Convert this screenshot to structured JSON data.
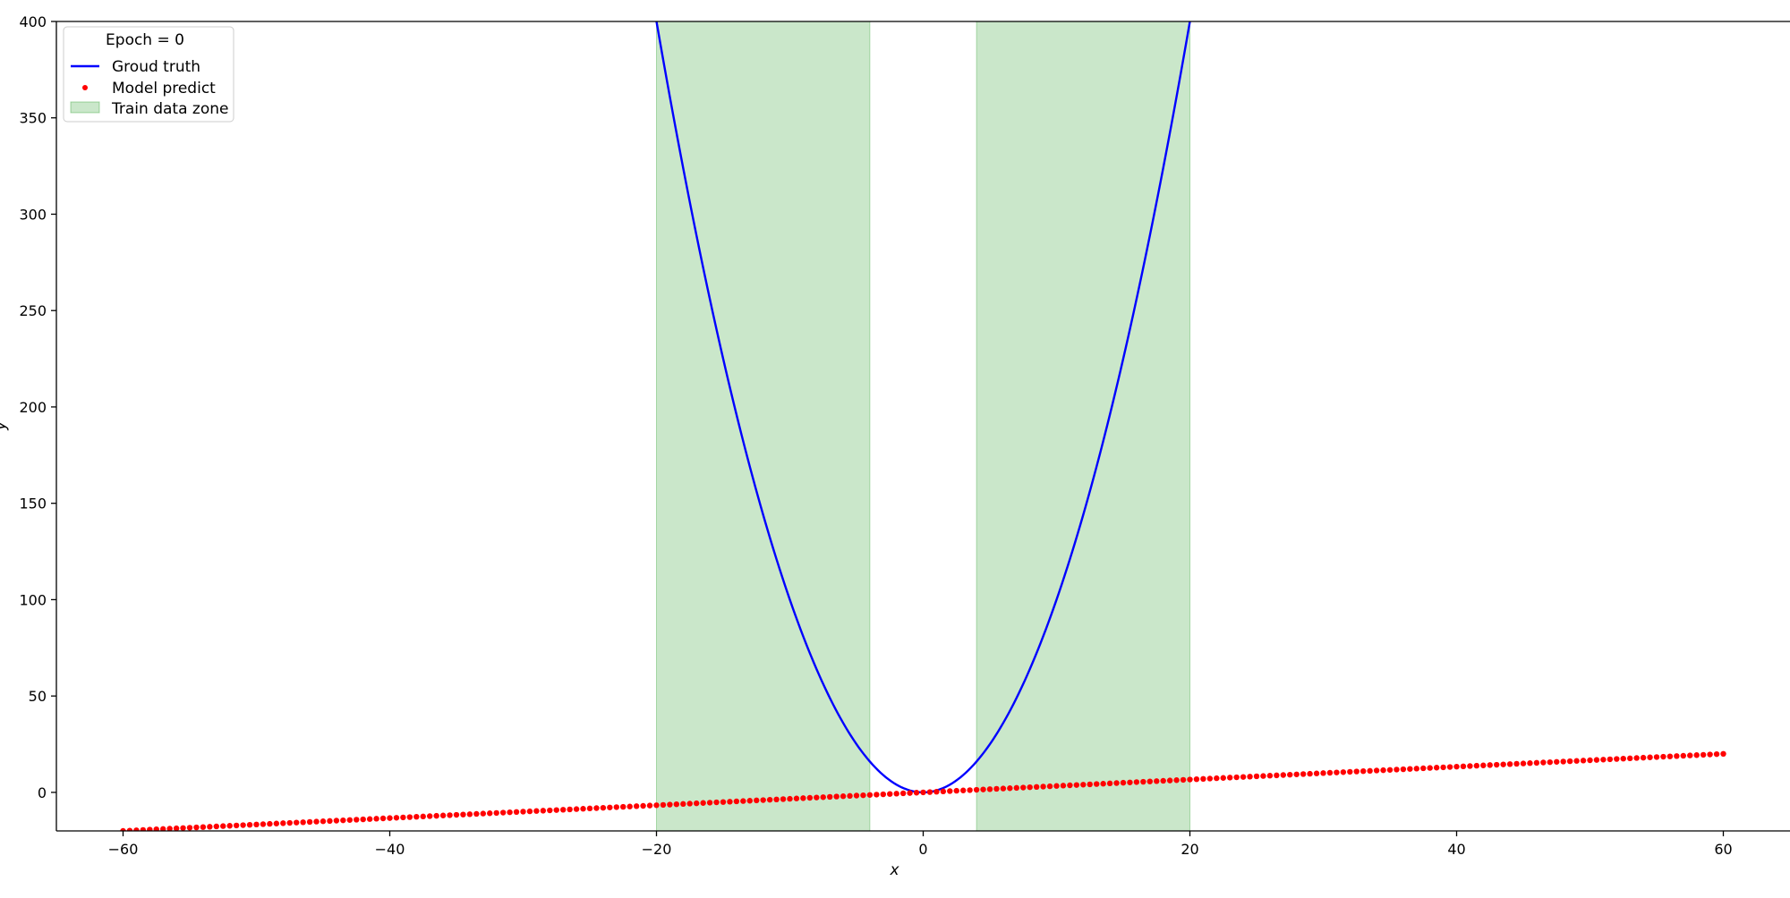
{
  "chart_data": {
    "type": "line",
    "title": "",
    "xlabel": "x",
    "ylabel": "y",
    "xlim": [
      -65,
      65
    ],
    "ylim": [
      -20,
      400
    ],
    "xticks": [
      -60,
      -40,
      -20,
      0,
      20,
      40,
      60
    ],
    "xtick_labels": [
      "−60",
      "−40",
      "−20",
      "0",
      "20",
      "40",
      "60"
    ],
    "yticks": [
      0,
      50,
      100,
      150,
      200,
      250,
      300,
      350,
      400
    ],
    "ytick_labels": [
      "0",
      "50",
      "100",
      "150",
      "200",
      "250",
      "300",
      "350",
      "400"
    ],
    "grid": false,
    "legend": {
      "placement": "top-left",
      "title": "Epoch = 0",
      "entries": [
        "Groud truth",
        "Model predict",
        "Train data zone"
      ]
    },
    "shaded_regions": [
      {
        "name": "Train data zone",
        "x_range": [
          -20,
          -4
        ],
        "color": "#2ca02c"
      },
      {
        "name": "Train data zone",
        "x_range": [
          4,
          20
        ],
        "color": "#2ca02c"
      }
    ],
    "series": [
      {
        "name": "Groud truth",
        "kind": "line",
        "color": "#0000ff",
        "function": "y = x^2",
        "x_range": [
          -60,
          60
        ]
      },
      {
        "name": "Model predict",
        "kind": "scatter",
        "color": "#ff0000",
        "x_range": [
          -60,
          60
        ],
        "y_range": [
          -20,
          20
        ],
        "function": "y = x/3"
      }
    ]
  }
}
